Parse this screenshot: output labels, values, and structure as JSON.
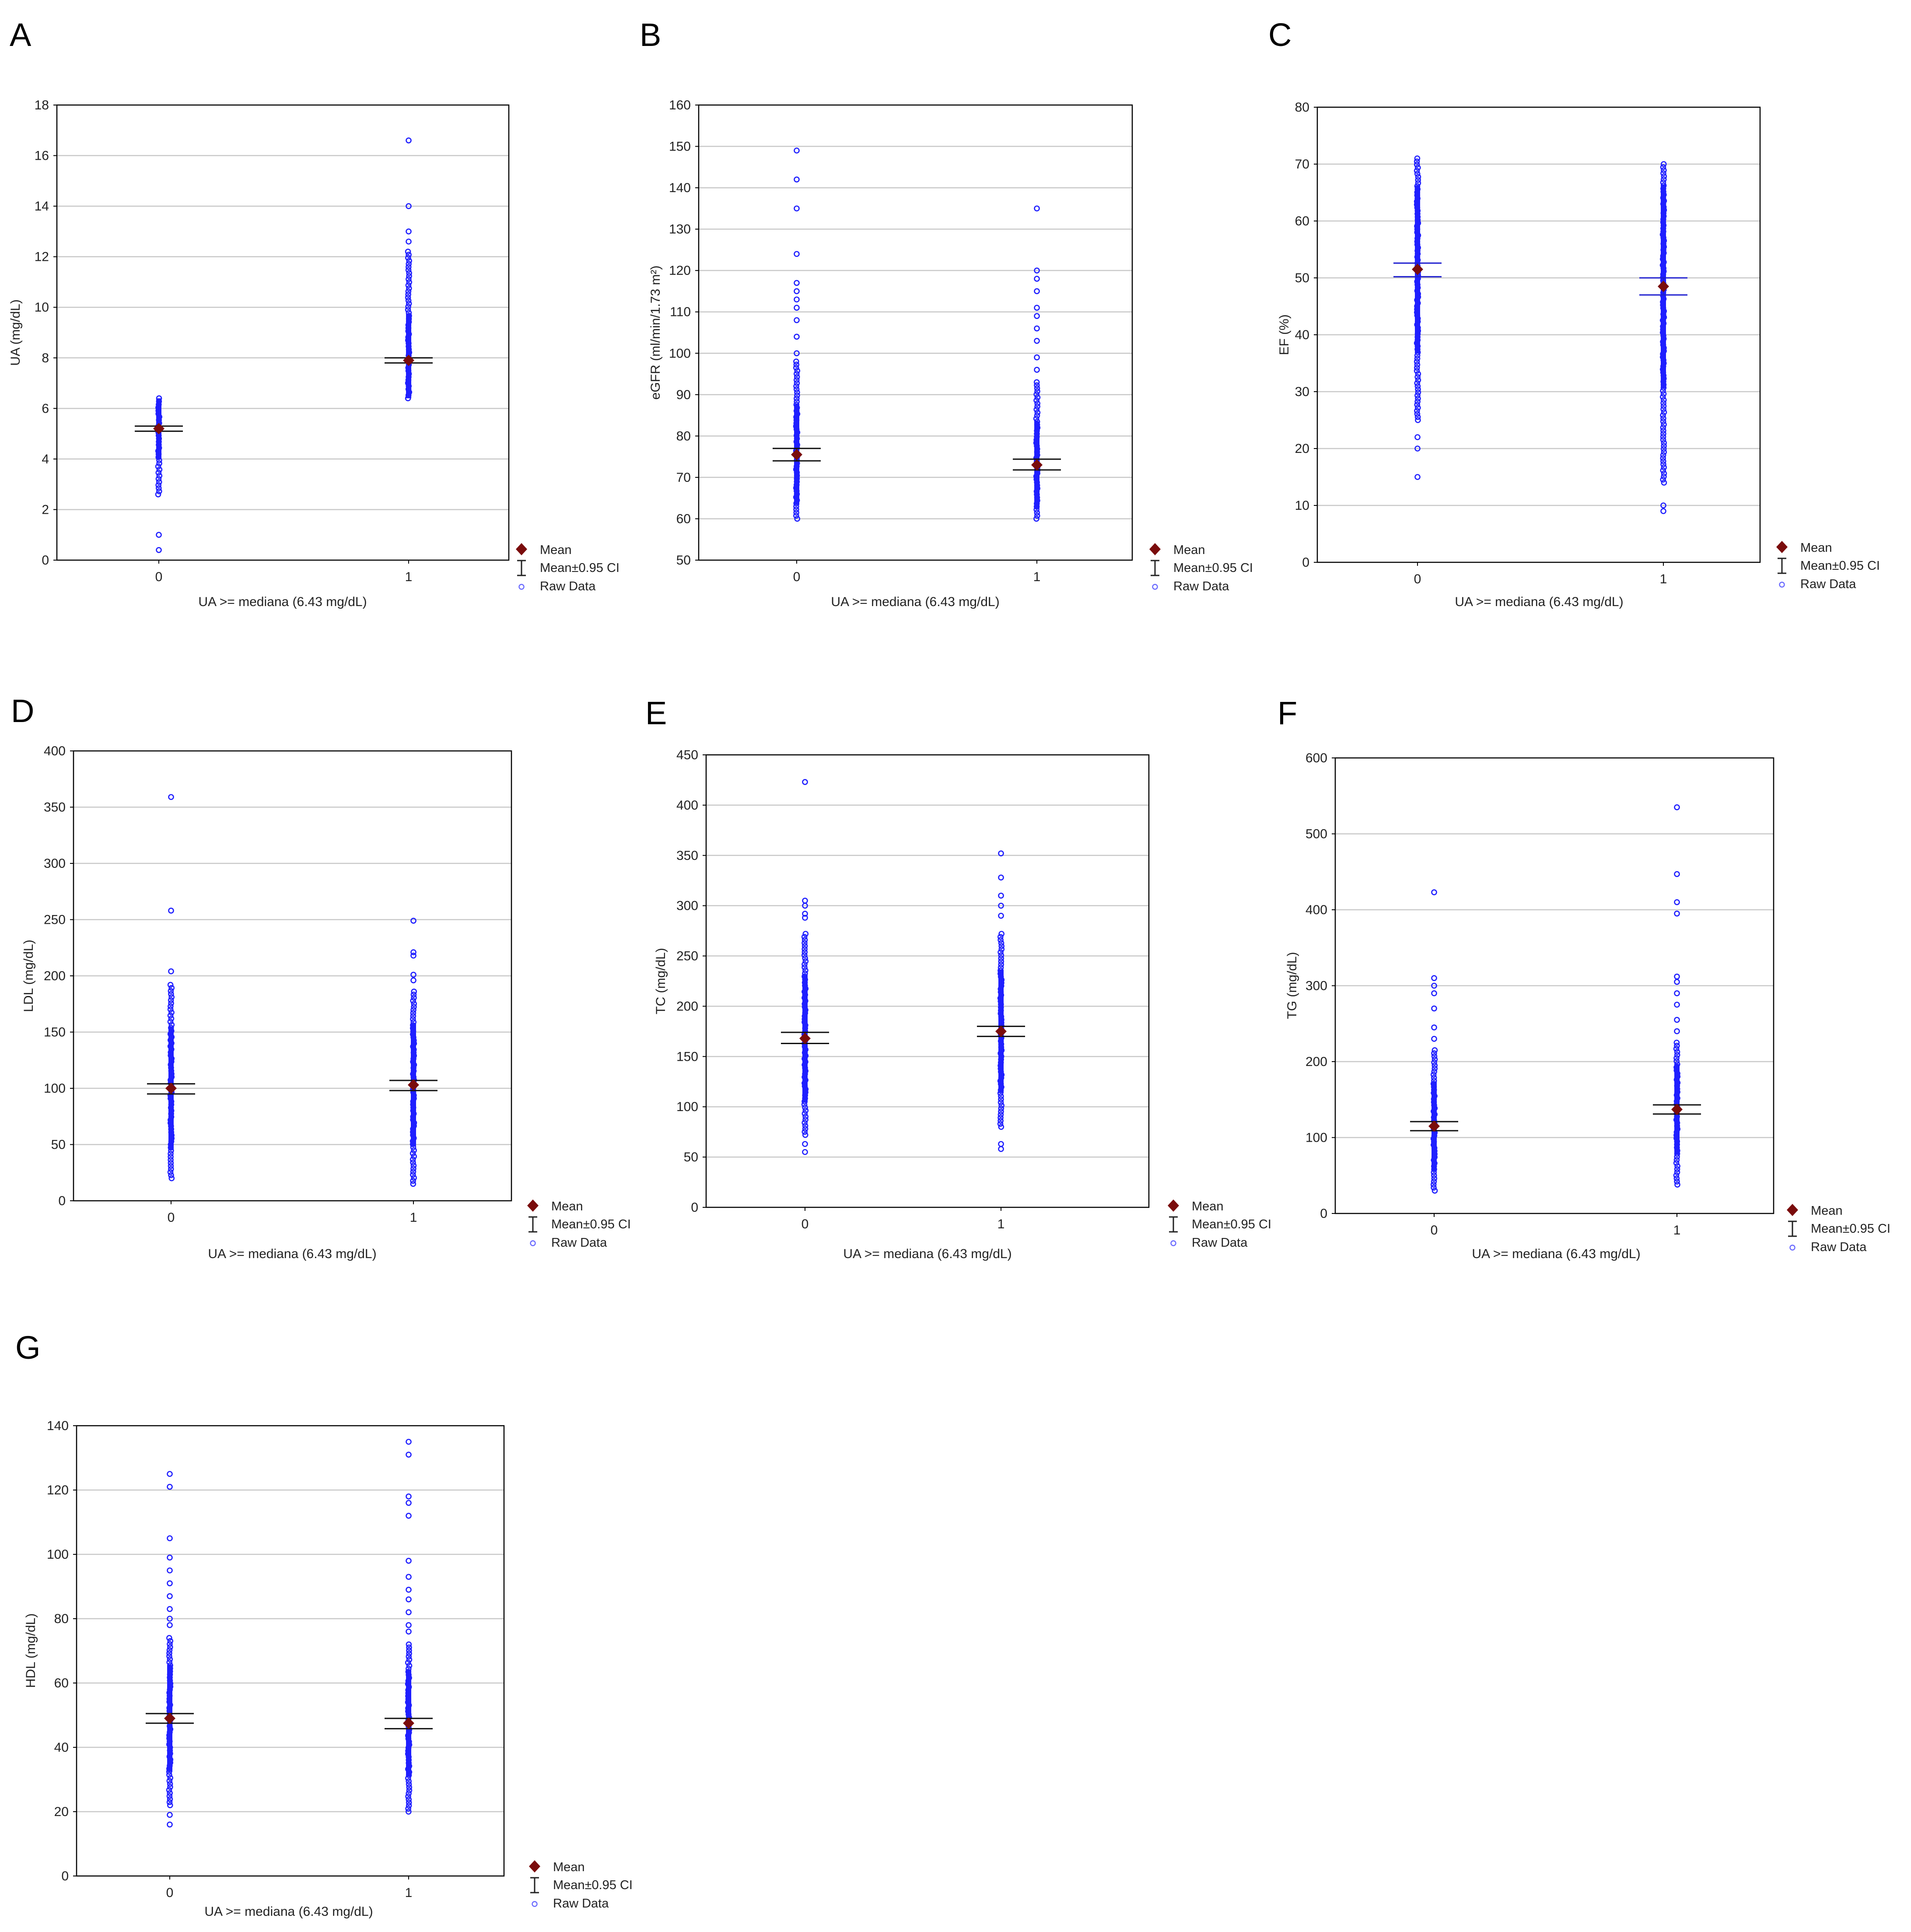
{
  "legend": {
    "mean": "Mean",
    "ci": "Mean±0.95 CI",
    "raw": "Raw Data"
  },
  "colors": {
    "raw": "#1f1fff",
    "mean": "#7a0c0c",
    "ci": "#111111",
    "grid": "#c8c8c8",
    "frame": "#000000"
  },
  "chart_data": [
    {
      "id": "A",
      "type": "scatter",
      "letter": "A",
      "xlabel": "UA >= mediana (6.43 mg/dL)",
      "ylabel": "UA (mg/dL)",
      "categories": [
        "0",
        "1"
      ],
      "ylim": [
        0,
        18
      ],
      "yticks": [
        0,
        2,
        4,
        6,
        8,
        10,
        12,
        14,
        16,
        18
      ],
      "series": [
        {
          "name": "0",
          "mean": 5.2,
          "ci": [
            5.1,
            5.3
          ],
          "range": [
            2.6,
            6.4
          ],
          "outliers": [
            1.0,
            0.4
          ]
        },
        {
          "name": "1",
          "mean": 7.9,
          "ci": [
            7.8,
            8.0
          ],
          "range": [
            6.4,
            12.2
          ],
          "outliers": [
            12.6,
            13.0,
            14.0,
            16.6
          ]
        }
      ]
    },
    {
      "id": "B",
      "type": "scatter",
      "letter": "B",
      "xlabel": "UA >= mediana (6.43 mg/dL)",
      "ylabel": "eGFR (ml/min/1.73 m²)",
      "categories": [
        "0",
        "1"
      ],
      "ylim": [
        50,
        160
      ],
      "yticks": [
        50,
        60,
        70,
        80,
        90,
        100,
        110,
        120,
        130,
        140,
        150,
        160
      ],
      "series": [
        {
          "name": "0",
          "mean": 75.5,
          "ci": [
            74.0,
            77.0
          ],
          "range": [
            60,
            98
          ],
          "outliers": [
            100,
            104,
            108,
            111,
            113,
            115,
            117,
            124,
            135,
            142,
            149
          ]
        },
        {
          "name": "1",
          "mean": 73.0,
          "ci": [
            71.8,
            74.4
          ],
          "range": [
            60,
            93
          ],
          "outliers": [
            96,
            99,
            103,
            106,
            109,
            111,
            115,
            118,
            120,
            135
          ]
        }
      ]
    },
    {
      "id": "C",
      "type": "scatter",
      "letter": "C",
      "xlabel": "UA >= mediana (6.43 mg/dL)",
      "ylabel": "EF (%)",
      "categories": [
        "0",
        "1"
      ],
      "ylim": [
        0,
        80
      ],
      "yticks": [
        0,
        10,
        20,
        30,
        40,
        50,
        60,
        70,
        80
      ],
      "series": [
        {
          "name": "0",
          "mean": 51.5,
          "ci": [
            50.2,
            52.6
          ],
          "range": [
            25,
            71
          ],
          "outliers": [
            22,
            20,
            15
          ]
        },
        {
          "name": "1",
          "mean": 48.5,
          "ci": [
            47.0,
            50.0
          ],
          "range": [
            14,
            70
          ],
          "outliers": [
            10,
            9
          ]
        }
      ]
    },
    {
      "id": "D",
      "type": "scatter",
      "letter": "D",
      "xlabel": "UA >= mediana (6.43 mg/dL)",
      "ylabel": "LDL (mg/dL)",
      "categories": [
        "0",
        "1"
      ],
      "ylim": [
        0,
        400
      ],
      "yticks": [
        0,
        50,
        100,
        150,
        200,
        250,
        300,
        350,
        400
      ],
      "series": [
        {
          "name": "0",
          "mean": 100,
          "ci": [
            95,
            104
          ],
          "range": [
            20,
            192
          ],
          "outliers": [
            204,
            258,
            359
          ]
        },
        {
          "name": "1",
          "mean": 103,
          "ci": [
            98,
            107
          ],
          "range": [
            15,
            186
          ],
          "outliers": [
            196,
            201,
            218,
            221,
            249
          ]
        }
      ]
    },
    {
      "id": "E",
      "type": "scatter",
      "letter": "E",
      "xlabel": "UA >= mediana (6.43 mg/dL)",
      "ylabel": "TC (mg/dL)",
      "categories": [
        "0",
        "1"
      ],
      "ylim": [
        0,
        450
      ],
      "yticks": [
        0,
        50,
        100,
        150,
        200,
        250,
        300,
        350,
        400,
        450
      ],
      "series": [
        {
          "name": "0",
          "mean": 168,
          "ci": [
            163,
            174
          ],
          "range": [
            72,
            272
          ],
          "outliers": [
            55,
            63,
            288,
            292,
            300,
            305,
            423
          ]
        },
        {
          "name": "1",
          "mean": 175,
          "ci": [
            170,
            180
          ],
          "range": [
            80,
            272
          ],
          "outliers": [
            58,
            63,
            290,
            300,
            310,
            328,
            352
          ]
        }
      ]
    },
    {
      "id": "F",
      "type": "scatter",
      "letter": "F",
      "xlabel": "UA >= mediana (6.43 mg/dL)",
      "ylabel": "TG (mg/dL)",
      "categories": [
        "0",
        "1"
      ],
      "ylim": [
        0,
        600
      ],
      "yticks": [
        0,
        100,
        200,
        300,
        400,
        500,
        600
      ],
      "series": [
        {
          "name": "0",
          "mean": 115,
          "ci": [
            109,
            121
          ],
          "range": [
            30,
            215
          ],
          "outliers": [
            230,
            245,
            270,
            290,
            300,
            310,
            423
          ]
        },
        {
          "name": "1",
          "mean": 137,
          "ci": [
            131,
            143
          ],
          "range": [
            38,
            225
          ],
          "outliers": [
            240,
            255,
            275,
            290,
            305,
            312,
            395,
            410,
            447,
            535
          ]
        }
      ]
    },
    {
      "id": "G",
      "type": "scatter",
      "letter": "G",
      "xlabel": "UA >= mediana (6.43 mg/dL)",
      "ylabel": "HDL (mg/dL)",
      "categories": [
        "0",
        "1"
      ],
      "ylim": [
        0,
        140
      ],
      "yticks": [
        0,
        20,
        40,
        60,
        80,
        100,
        120,
        140
      ],
      "series": [
        {
          "name": "0",
          "mean": 49,
          "ci": [
            47.5,
            50.5
          ],
          "range": [
            22,
            74
          ],
          "outliers": [
            16,
            19,
            78,
            80,
            83,
            87,
            91,
            95,
            99,
            105,
            121,
            125
          ]
        },
        {
          "name": "1",
          "mean": 47.5,
          "ci": [
            45.8,
            49.0
          ],
          "range": [
            20,
            72
          ],
          "outliers": [
            76,
            78,
            82,
            86,
            89,
            93,
            98,
            112,
            116,
            118,
            131,
            135
          ]
        }
      ]
    }
  ]
}
